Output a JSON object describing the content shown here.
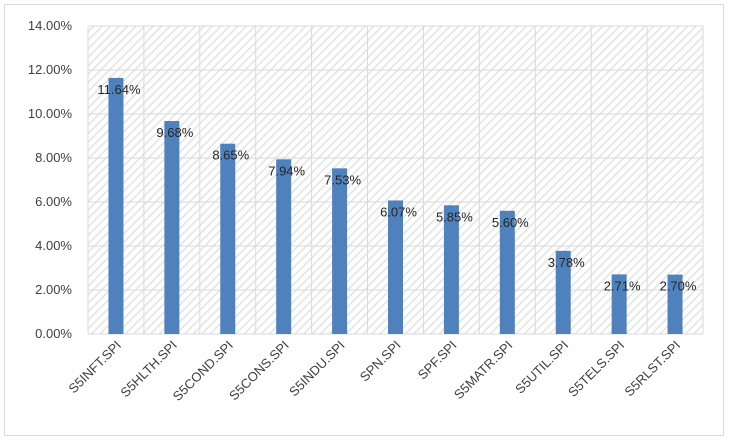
{
  "chart_data": {
    "type": "bar",
    "categories": [
      "S5INFT.SPI",
      "S5HLTH.SPI",
      "S5COND.SPI",
      "S5CONS.SPI",
      "S5INDU.SPI",
      "SPN.SPI",
      "SPF.SPI",
      "S5MATR.SPI",
      "S5UTIL.SPI",
      "S5TELS.SPI",
      "S5RLST.SPI"
    ],
    "values": [
      11.64,
      9.68,
      8.65,
      7.94,
      7.53,
      6.07,
      5.85,
      5.6,
      3.78,
      2.71,
      2.7
    ],
    "data_labels": [
      "11.64%",
      "9.68%",
      "8.65%",
      "7.94%",
      "7.53%",
      "6.07%",
      "5.85%",
      "5.60%",
      "3.78%",
      "2.71%",
      "2.70%"
    ],
    "y_ticks": [
      0,
      2,
      4,
      6,
      8,
      10,
      12,
      14
    ],
    "y_tick_labels": [
      "0.00%",
      "2.00%",
      "4.00%",
      "6.00%",
      "8.00%",
      "10.00%",
      "12.00%",
      "14.00%"
    ],
    "ylim": [
      0,
      14
    ],
    "title": "",
    "xlabel": "",
    "ylabel": "",
    "grid": true,
    "legend": "none",
    "bar_color": "#4f81bd",
    "grid_color": "#d9d9d9",
    "plot_pattern_color": "#e3e3e3"
  }
}
